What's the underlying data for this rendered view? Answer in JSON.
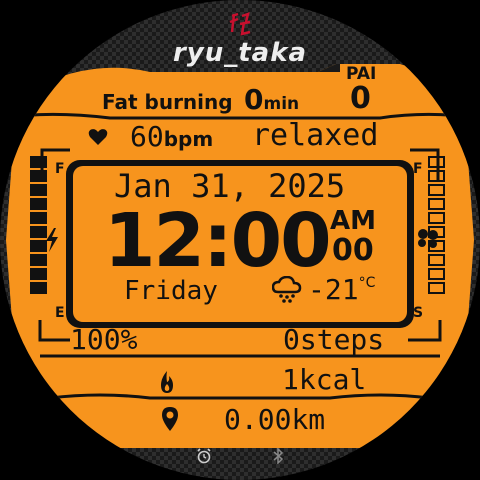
{
  "brand": {
    "logo_icon": "kanji-ryu-logo",
    "name": "ryu_taka"
  },
  "pai": {
    "label": "PAI",
    "value": "0"
  },
  "fat_burning": {
    "label": "Fat burning",
    "value": "0",
    "unit": "min"
  },
  "heart": {
    "icon": "heart-icon",
    "value": "60",
    "unit": "bpm",
    "status": "relaxed"
  },
  "battery": {
    "full_label": "F",
    "empty_label": "E",
    "icon": "lightning-icon",
    "percent_text": "100%",
    "level": 1.0,
    "segments": 10
  },
  "steps_gauge": {
    "full_label": "F",
    "start_label": "S",
    "icon": "footsteps-icon",
    "level": 0.0,
    "segments": 10
  },
  "date": {
    "month": "Jan",
    "day": "31",
    "separator": ",",
    "year": "2025",
    "weekday": "Friday"
  },
  "time": {
    "hours": "12",
    "colon": ":",
    "minutes": "00",
    "ampm": "AM",
    "seconds": "00"
  },
  "weather": {
    "icon": "cloud-snow-icon",
    "temp": "-21",
    "unit": "°C"
  },
  "steps": {
    "value": "0",
    "unit": "steps"
  },
  "calories": {
    "icon": "flame-icon",
    "value": "1",
    "unit": "kcal"
  },
  "distance": {
    "icon": "location-pin-icon",
    "value": "0.00",
    "unit": "km"
  },
  "bottom_icons": {
    "alarm": "alarm-clock-icon",
    "bluetooth": "bluetooth-icon"
  },
  "colors": {
    "accent": "#f7941d",
    "ink": "#111111",
    "carbon": "#1a1a1a",
    "logo_red": "#c8102e"
  }
}
